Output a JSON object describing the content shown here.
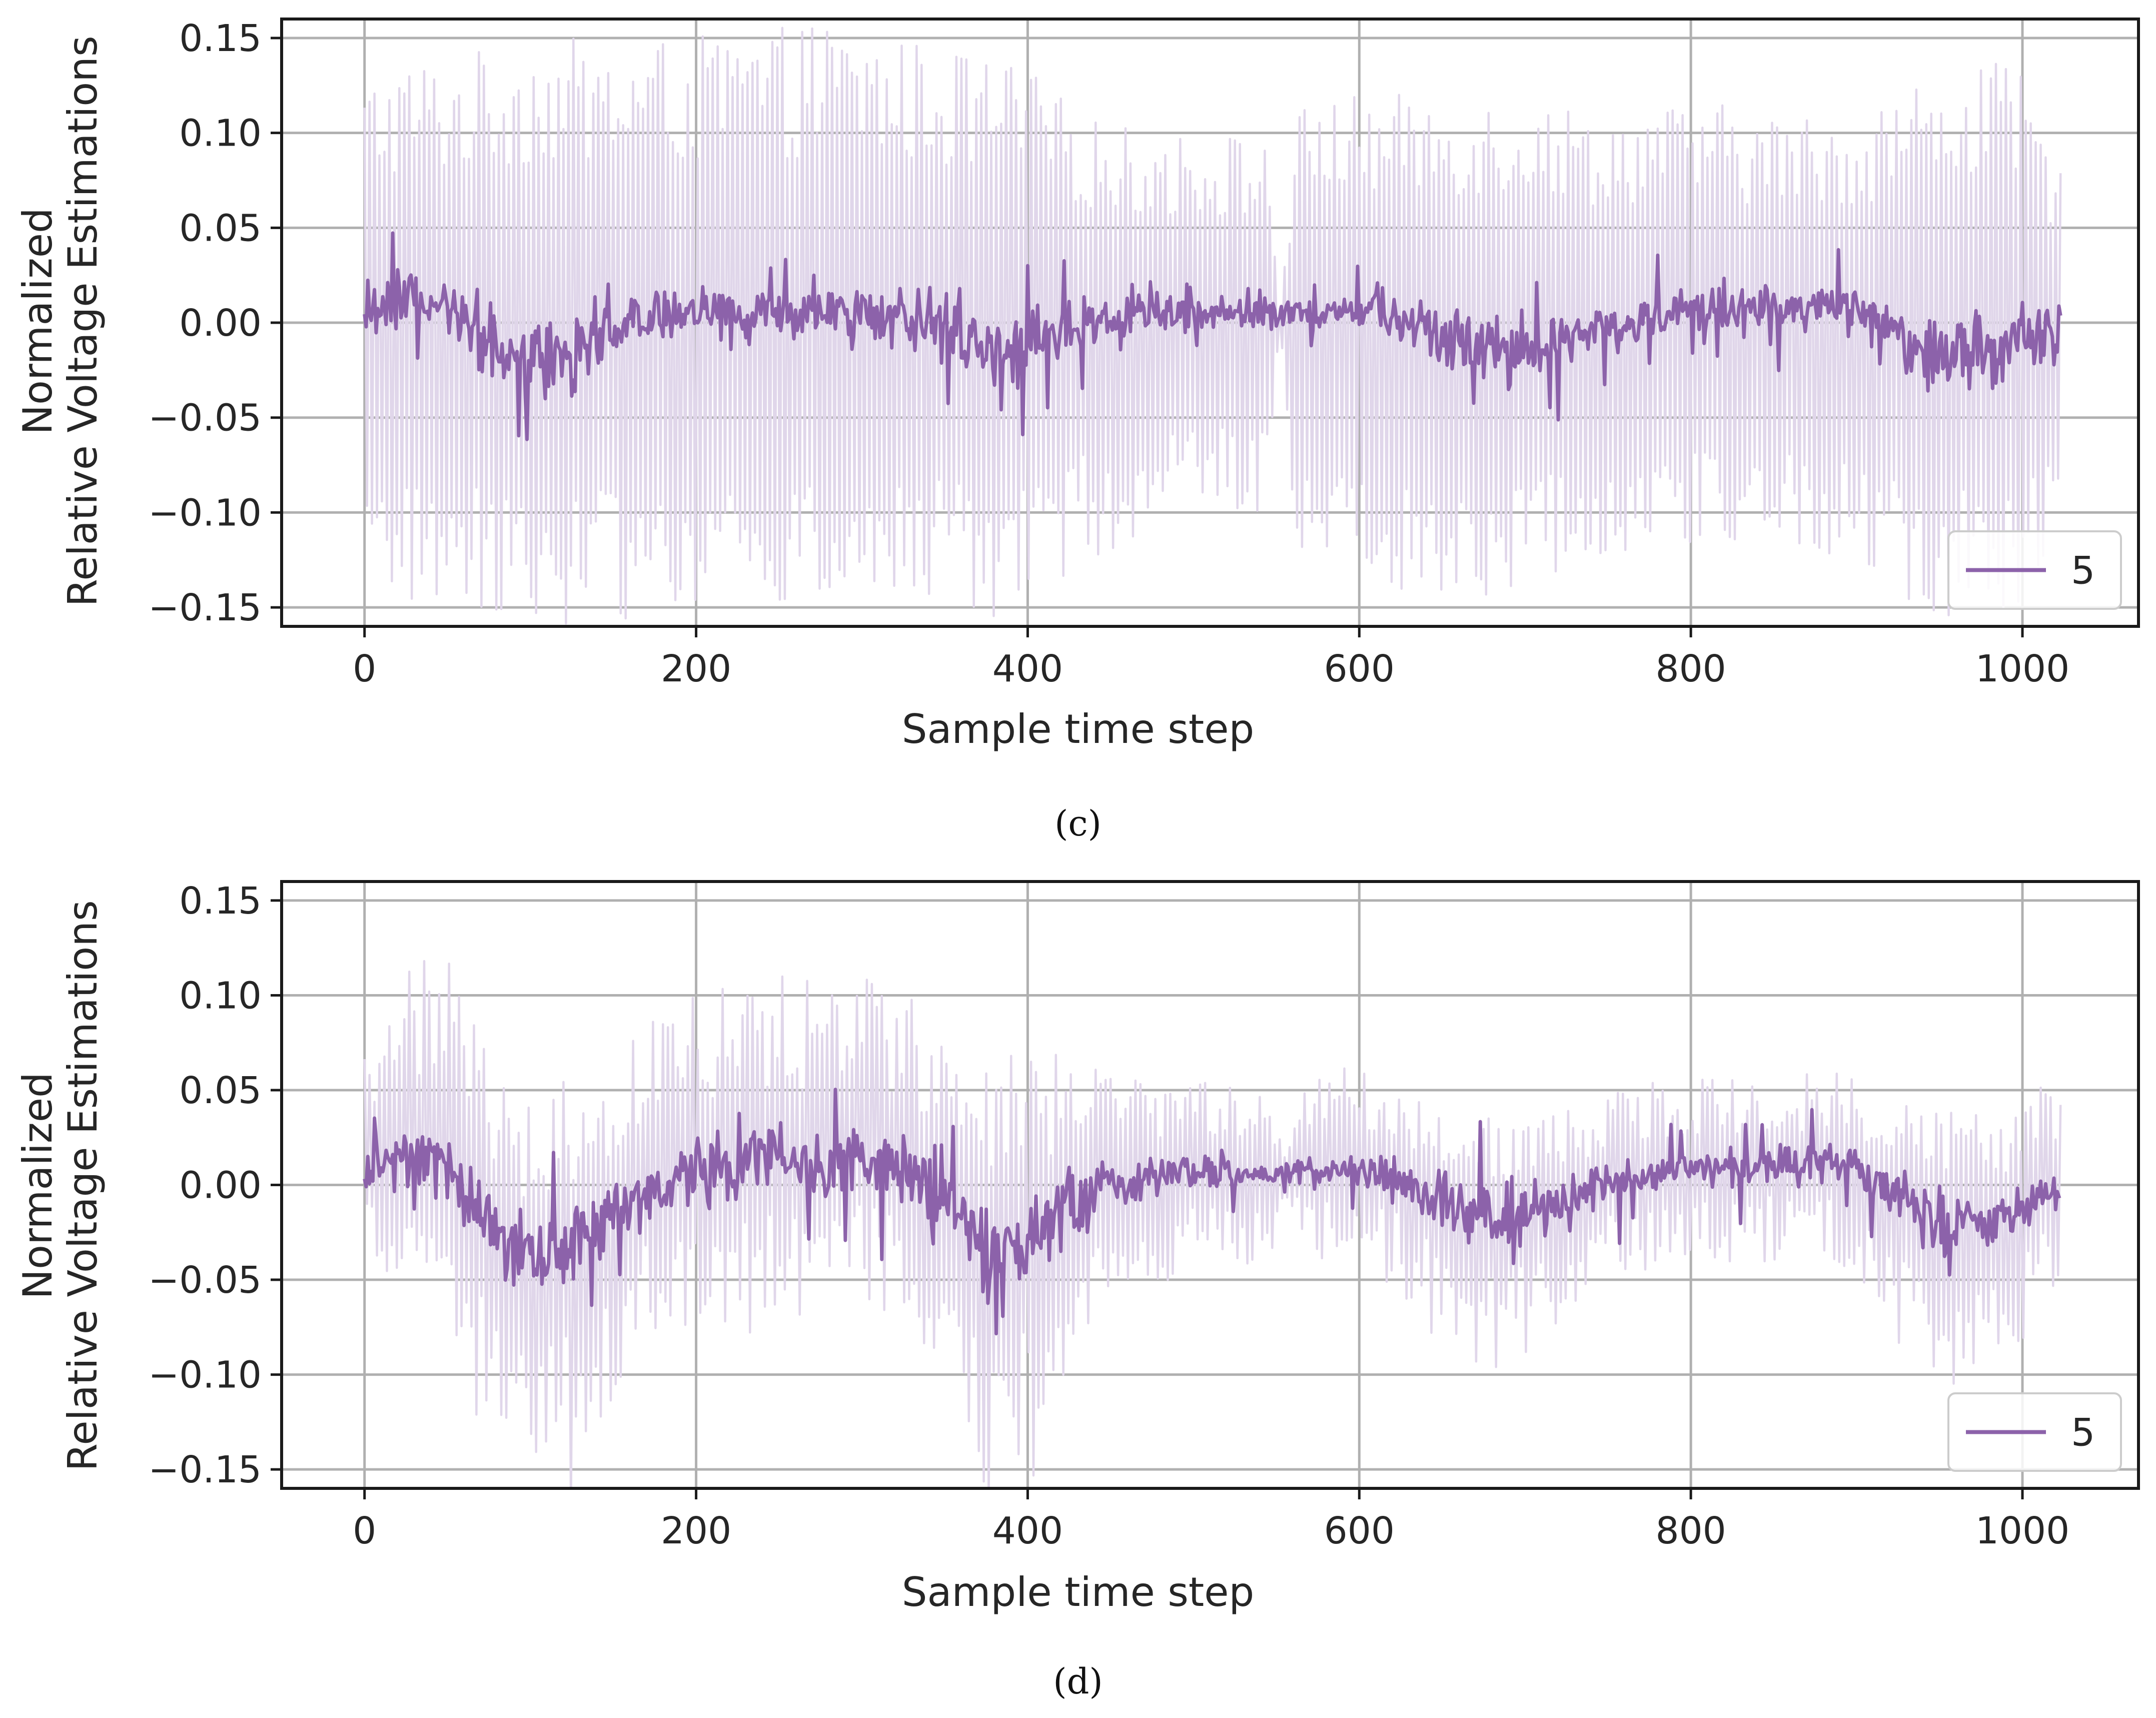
{
  "figure": {
    "colors": {
      "series": "#8c62aa",
      "band": "#e0d6ea",
      "grid": "#b0b0b0",
      "frame": "#1a1a1a"
    }
  },
  "chart_data": [
    {
      "type": "line",
      "caption": "(c)",
      "xlabel": "Sample time step",
      "ylabel_line1": "Normalized",
      "ylabel_line2": "Relative Voltage Estimations",
      "xlim": [
        -50,
        1070
      ],
      "ylim": [
        -0.16,
        0.16
      ],
      "xticks": [
        0,
        200,
        400,
        600,
        800,
        1000
      ],
      "xtick_labels": [
        "0",
        "200",
        "400",
        "600",
        "800",
        "1000"
      ],
      "yticks": [
        -0.15,
        -0.1,
        -0.05,
        0.0,
        0.05,
        0.1,
        0.15
      ],
      "ytick_labels": [
        "−0.15",
        "−0.10",
        "−0.05",
        "0.00",
        "0.05",
        "0.10",
        "0.15"
      ],
      "grid": true,
      "legend": {
        "position": "bottom-right",
        "entries": [
          "5"
        ]
      },
      "x_range": [
        0,
        1023
      ],
      "series": [
        {
          "name": "5",
          "role": "mean",
          "x": [
            0,
            25,
            50,
            75,
            100,
            125,
            150,
            175,
            200,
            225,
            250,
            275,
            300,
            325,
            350,
            375,
            400,
            425,
            450,
            475,
            500,
            525,
            550,
            575,
            600,
            625,
            650,
            675,
            700,
            725,
            750,
            775,
            800,
            825,
            850,
            875,
            900,
            925,
            950,
            975,
            1000,
            1023
          ],
          "y": [
            0.01,
            0.012,
            0.004,
            -0.01,
            -0.022,
            -0.015,
            -0.002,
            0.004,
            0.005,
            0.006,
            0.004,
            0.007,
            0.006,
            0.003,
            -0.005,
            -0.015,
            -0.012,
            -0.003,
            0.002,
            0.005,
            0.006,
            0.006,
            0.006,
            0.004,
            0.008,
            0.004,
            -0.008,
            -0.015,
            -0.018,
            -0.01,
            -0.002,
            0.004,
            0.006,
            0.007,
            0.008,
            0.008,
            0.006,
            -0.006,
            -0.015,
            -0.015,
            -0.01,
            -0.003
          ],
          "spread": [
            0.02,
            0.02,
            0.02,
            0.025,
            0.03,
            0.025,
            0.02,
            0.018,
            0.018,
            0.02,
            0.02,
            0.02,
            0.018,
            0.02,
            0.025,
            0.028,
            0.025,
            0.02,
            0.015,
            0.014,
            0.014,
            0.014,
            0.014,
            0.01,
            0.014,
            0.018,
            0.024,
            0.028,
            0.024,
            0.02,
            0.016,
            0.015,
            0.015,
            0.015,
            0.015,
            0.015,
            0.018,
            0.022,
            0.026,
            0.026,
            0.022,
            0.02
          ]
        },
        {
          "name": "5 (spread)",
          "role": "band",
          "x": [
            0,
            25,
            50,
            75,
            100,
            125,
            150,
            175,
            200,
            225,
            250,
            275,
            300,
            325,
            350,
            375,
            400,
            425,
            450,
            475,
            500,
            525,
            545,
            552,
            562,
            575,
            600,
            625,
            650,
            675,
            700,
            725,
            750,
            775,
            800,
            825,
            850,
            875,
            900,
            925,
            950,
            975,
            1000,
            1023
          ],
          "y": [
            0.13,
            0.14,
            0.14,
            0.145,
            0.15,
            0.15,
            0.145,
            0.15,
            0.15,
            0.155,
            0.155,
            0.16,
            0.155,
            0.15,
            0.145,
            0.14,
            0.135,
            0.115,
            0.105,
            0.1,
            0.1,
            0.1,
            0.095,
            0.01,
            0.11,
            0.12,
            0.12,
            0.12,
            0.12,
            0.12,
            0.12,
            0.115,
            0.11,
            0.115,
            0.115,
            0.115,
            0.11,
            0.11,
            0.11,
            0.125,
            0.13,
            0.14,
            0.13,
            0.08
          ],
          "spread": [
            0.15,
            0.15,
            0.15,
            0.15,
            0.16,
            0.16,
            0.16,
            0.15,
            0.15,
            0.15,
            0.15,
            0.15,
            0.15,
            0.15,
            0.15,
            0.16,
            0.16,
            0.13,
            0.12,
            0.11,
            0.1,
            0.1,
            0.1,
            0.0,
            0.12,
            0.12,
            0.13,
            0.14,
            0.15,
            0.15,
            0.14,
            0.13,
            0.12,
            0.12,
            0.12,
            0.12,
            0.12,
            0.12,
            0.13,
            0.15,
            0.16,
            0.16,
            0.15,
            0.1
          ]
        }
      ]
    },
    {
      "type": "line",
      "caption": "(d)",
      "xlabel": "Sample time step",
      "ylabel_line1": "Normalized",
      "ylabel_line2": "Relative Voltage Estimations",
      "xlim": [
        -50,
        1070
      ],
      "ylim": [
        -0.16,
        0.16
      ],
      "xticks": [
        0,
        200,
        400,
        600,
        800,
        1000
      ],
      "xtick_labels": [
        "0",
        "200",
        "400",
        "600",
        "800",
        "1000"
      ],
      "yticks": [
        -0.15,
        -0.1,
        -0.05,
        0.0,
        0.05,
        0.1,
        0.15
      ],
      "ytick_labels": [
        "−0.15",
        "−0.10",
        "−0.05",
        "0.00",
        "0.05",
        "0.10",
        "0.15"
      ],
      "grid": true,
      "legend": {
        "position": "bottom-right",
        "entries": [
          "5"
        ]
      },
      "x_range": [
        0,
        1023
      ],
      "series": [
        {
          "name": "5",
          "role": "mean",
          "x": [
            0,
            25,
            50,
            75,
            100,
            125,
            150,
            175,
            200,
            225,
            250,
            275,
            300,
            325,
            350,
            375,
            400,
            425,
            450,
            475,
            500,
            525,
            550,
            575,
            600,
            625,
            650,
            675,
            700,
            725,
            750,
            775,
            800,
            825,
            850,
            875,
            900,
            925,
            950,
            975,
            1000,
            1023
          ],
          "y": [
            0.008,
            0.015,
            0.012,
            -0.02,
            -0.04,
            -0.03,
            -0.015,
            0.0,
            0.008,
            0.01,
            0.012,
            0.012,
            0.014,
            0.008,
            -0.012,
            -0.03,
            -0.03,
            -0.012,
            0.0,
            0.005,
            0.008,
            0.006,
            0.006,
            0.008,
            0.008,
            0.004,
            -0.01,
            -0.02,
            -0.018,
            -0.008,
            0.0,
            0.005,
            0.008,
            0.008,
            0.01,
            0.01,
            0.008,
            -0.005,
            -0.018,
            -0.022,
            -0.012,
            0.0
          ],
          "spread": [
            0.02,
            0.02,
            0.025,
            0.03,
            0.035,
            0.03,
            0.025,
            0.025,
            0.025,
            0.025,
            0.025,
            0.025,
            0.025,
            0.025,
            0.03,
            0.035,
            0.03,
            0.025,
            0.02,
            0.015,
            0.012,
            0.012,
            0.01,
            0.01,
            0.012,
            0.016,
            0.02,
            0.022,
            0.02,
            0.016,
            0.014,
            0.014,
            0.014,
            0.014,
            0.014,
            0.014,
            0.014,
            0.018,
            0.022,
            0.024,
            0.02,
            0.016
          ]
        },
        {
          "name": "5 (spread)",
          "role": "band",
          "x": [
            0,
            25,
            50,
            75,
            100,
            125,
            150,
            175,
            200,
            225,
            250,
            275,
            300,
            325,
            350,
            375,
            400,
            425,
            450,
            475,
            500,
            525,
            545,
            555,
            570,
            600,
            625,
            650,
            675,
            700,
            725,
            750,
            775,
            800,
            825,
            850,
            875,
            900,
            925,
            950,
            975,
            1000,
            1023
          ],
          "y": [
            0.07,
            0.11,
            0.11,
            0.1,
            0.08,
            0.09,
            0.09,
            0.09,
            0.1,
            0.1,
            0.1,
            0.1,
            0.1,
            0.1,
            0.09,
            0.1,
            0.1,
            0.08,
            0.06,
            0.05,
            0.05,
            0.045,
            0.04,
            0.01,
            0.06,
            0.06,
            0.05,
            0.05,
            0.06,
            0.05,
            0.05,
            0.05,
            0.05,
            0.05,
            0.05,
            0.05,
            0.05,
            0.05,
            0.05,
            0.06,
            0.07,
            0.06,
            0.055
          ],
          "spread": [
            0.04,
            0.08,
            0.09,
            0.12,
            0.15,
            0.14,
            0.1,
            0.08,
            0.08,
            0.09,
            0.09,
            0.08,
            0.08,
            0.08,
            0.11,
            0.14,
            0.15,
            0.1,
            0.07,
            0.06,
            0.05,
            0.05,
            0.05,
            0.01,
            0.05,
            0.05,
            0.06,
            0.08,
            0.09,
            0.08,
            0.06,
            0.05,
            0.05,
            0.05,
            0.05,
            0.05,
            0.05,
            0.06,
            0.08,
            0.09,
            0.08,
            0.07,
            0.05
          ]
        }
      ]
    }
  ]
}
